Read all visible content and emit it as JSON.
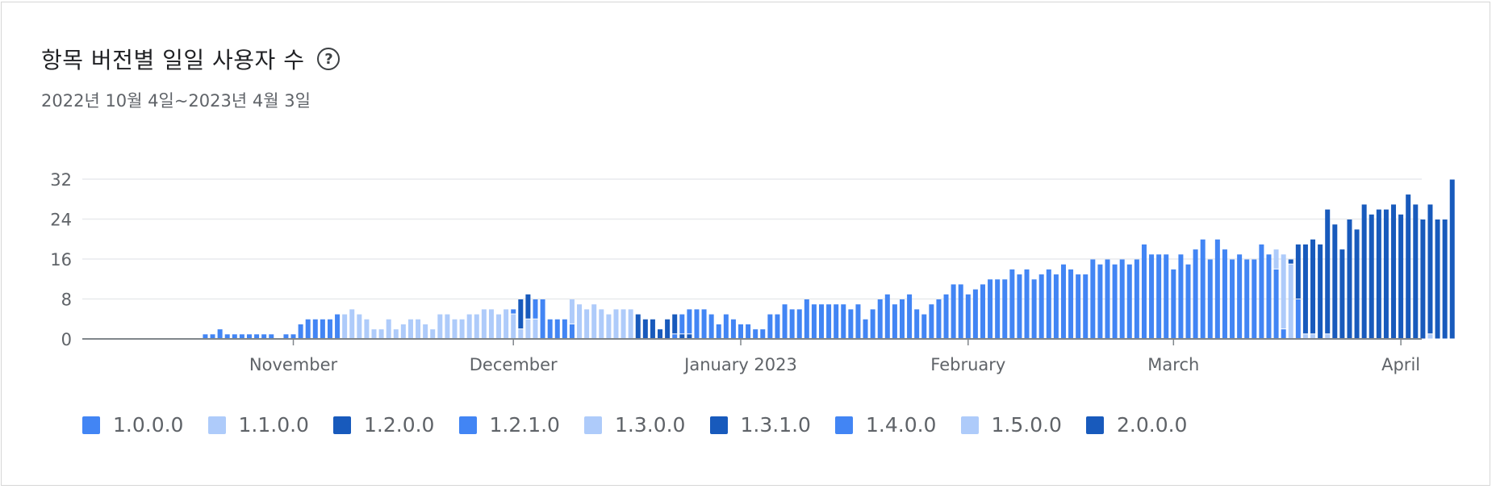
{
  "header": {
    "title": "항목 버전별 일일 사용자 수",
    "subtitle": "2022년 10월 4일~2023년 4월 3일"
  },
  "colors": {
    "mid": "#4285f4",
    "light": "#aecbfa",
    "dark": "#185abc"
  },
  "chart_data": {
    "type": "bar",
    "stacked": true,
    "ylim": [
      0,
      32
    ],
    "yticks": [
      "0",
      "8",
      "16",
      "24",
      "32"
    ],
    "xticks": [
      {
        "label": "November",
        "day": 28
      },
      {
        "label": "December",
        "day": 58
      },
      {
        "label": "January 2023",
        "day": 89
      },
      {
        "label": "February",
        "day": 120
      },
      {
        "label": "March",
        "day": 148
      },
      {
        "label": "April",
        "day": 179
      }
    ],
    "grid": true,
    "legend_position": "bottom",
    "series": [
      {
        "name": "1.0.0.0",
        "color": "#4285f4"
      },
      {
        "name": "1.1.0.0",
        "color": "#aecbfa"
      },
      {
        "name": "1.2.0.0",
        "color": "#185abc"
      },
      {
        "name": "1.2.1.0",
        "color": "#4285f4"
      },
      {
        "name": "1.3.0.0",
        "color": "#aecbfa"
      },
      {
        "name": "1.3.1.0",
        "color": "#185abc"
      },
      {
        "name": "1.4.0.0",
        "color": "#4285f4"
      },
      {
        "name": "1.5.0.0",
        "color": "#aecbfa"
      },
      {
        "name": "2.0.0.0",
        "color": "#185abc"
      }
    ],
    "days": [
      [],
      [],
      [],
      [],
      [],
      [],
      [],
      [],
      [],
      [],
      [],
      [],
      [],
      [],
      [],
      [],
      [
        [
          0,
          1
        ]
      ],
      [
        [
          0,
          1
        ]
      ],
      [
        [
          0,
          2
        ]
      ],
      [
        [
          0,
          1
        ]
      ],
      [
        [
          0,
          1
        ]
      ],
      [
        [
          0,
          1
        ]
      ],
      [
        [
          0,
          1
        ]
      ],
      [
        [
          0,
          1
        ]
      ],
      [
        [
          0,
          1
        ]
      ],
      [
        [
          0,
          1
        ]
      ],
      [],
      [
        [
          0,
          1
        ]
      ],
      [
        [
          0,
          1
        ]
      ],
      [
        [
          0,
          3
        ]
      ],
      [
        [
          0,
          4
        ]
      ],
      [
        [
          0,
          4
        ]
      ],
      [
        [
          0,
          4
        ]
      ],
      [
        [
          0,
          4
        ]
      ],
      [
        [
          0,
          5
        ]
      ],
      [
        [
          1,
          5
        ]
      ],
      [
        [
          1,
          6
        ]
      ],
      [
        [
          1,
          5
        ]
      ],
      [
        [
          1,
          4
        ]
      ],
      [
        [
          1,
          2
        ]
      ],
      [
        [
          1,
          2
        ]
      ],
      [
        [
          1,
          4
        ]
      ],
      [
        [
          1,
          2
        ]
      ],
      [
        [
          1,
          3
        ]
      ],
      [
        [
          1,
          4
        ]
      ],
      [
        [
          1,
          4
        ]
      ],
      [
        [
          1,
          3
        ]
      ],
      [
        [
          1,
          2
        ]
      ],
      [
        [
          1,
          5
        ]
      ],
      [
        [
          1,
          5
        ]
      ],
      [
        [
          1,
          4
        ]
      ],
      [
        [
          1,
          4
        ]
      ],
      [
        [
          1,
          5
        ]
      ],
      [
        [
          1,
          5
        ]
      ],
      [
        [
          1,
          6
        ]
      ],
      [
        [
          1,
          6
        ]
      ],
      [
        [
          1,
          5
        ]
      ],
      [
        [
          1,
          6
        ]
      ],
      [
        [
          1,
          5
        ],
        [
          0,
          1
        ]
      ],
      [
        [
          1,
          2
        ],
        [
          2,
          6
        ]
      ],
      [
        [
          1,
          4
        ],
        [
          2,
          5
        ]
      ],
      [
        [
          1,
          4
        ],
        [
          3,
          4
        ]
      ],
      [
        [
          3,
          8
        ]
      ],
      [
        [
          3,
          4
        ]
      ],
      [
        [
          3,
          4
        ]
      ],
      [
        [
          3,
          4
        ]
      ],
      [
        [
          3,
          3
        ],
        [
          4,
          5
        ]
      ],
      [
        [
          4,
          7
        ]
      ],
      [
        [
          4,
          6
        ]
      ],
      [
        [
          4,
          7
        ]
      ],
      [
        [
          4,
          6
        ]
      ],
      [
        [
          4,
          5
        ]
      ],
      [
        [
          4,
          6
        ]
      ],
      [
        [
          4,
          6
        ]
      ],
      [
        [
          4,
          6
        ]
      ],
      [
        [
          5,
          5
        ]
      ],
      [
        [
          5,
          4
        ]
      ],
      [
        [
          5,
          4
        ]
      ],
      [
        [
          5,
          2
        ]
      ],
      [
        [
          5,
          4
        ]
      ],
      [
        [
          6,
          1
        ],
        [
          5,
          4
        ]
      ],
      [
        [
          5,
          1
        ],
        [
          6,
          4
        ]
      ],
      [
        [
          5,
          1
        ],
        [
          6,
          5
        ]
      ],
      [
        [
          6,
          6
        ]
      ],
      [
        [
          6,
          6
        ]
      ],
      [
        [
          6,
          5
        ]
      ],
      [
        [
          6,
          3
        ]
      ],
      [
        [
          6,
          5
        ]
      ],
      [
        [
          6,
          4
        ]
      ],
      [
        [
          6,
          3
        ]
      ],
      [
        [
          6,
          3
        ]
      ],
      [
        [
          6,
          2
        ]
      ],
      [
        [
          6,
          2
        ]
      ],
      [
        [
          6,
          5
        ]
      ],
      [
        [
          6,
          5
        ]
      ],
      [
        [
          6,
          7
        ]
      ],
      [
        [
          6,
          6
        ]
      ],
      [
        [
          6,
          6
        ]
      ],
      [
        [
          6,
          8
        ]
      ],
      [
        [
          6,
          7
        ]
      ],
      [
        [
          6,
          7
        ]
      ],
      [
        [
          6,
          7
        ]
      ],
      [
        [
          6,
          7
        ]
      ],
      [
        [
          6,
          7
        ]
      ],
      [
        [
          6,
          6
        ]
      ],
      [
        [
          6,
          7
        ]
      ],
      [
        [
          6,
          4
        ]
      ],
      [
        [
          6,
          6
        ]
      ],
      [
        [
          6,
          8
        ]
      ],
      [
        [
          6,
          9
        ]
      ],
      [
        [
          6,
          7
        ]
      ],
      [
        [
          6,
          8
        ]
      ],
      [
        [
          6,
          9
        ]
      ],
      [
        [
          6,
          6
        ]
      ],
      [
        [
          6,
          5
        ]
      ],
      [
        [
          6,
          7
        ]
      ],
      [
        [
          6,
          8
        ]
      ],
      [
        [
          6,
          9
        ]
      ],
      [
        [
          6,
          11
        ]
      ],
      [
        [
          6,
          11
        ]
      ],
      [
        [
          6,
          9
        ]
      ],
      [
        [
          6,
          10
        ]
      ],
      [
        [
          6,
          11
        ]
      ],
      [
        [
          6,
          12
        ]
      ],
      [
        [
          6,
          12
        ]
      ],
      [
        [
          6,
          12
        ]
      ],
      [
        [
          6,
          14
        ]
      ],
      [
        [
          6,
          13
        ]
      ],
      [
        [
          6,
          14
        ]
      ],
      [
        [
          6,
          12
        ]
      ],
      [
        [
          6,
          13
        ]
      ],
      [
        [
          6,
          14
        ]
      ],
      [
        [
          6,
          13
        ]
      ],
      [
        [
          6,
          15
        ]
      ],
      [
        [
          6,
          14
        ]
      ],
      [
        [
          6,
          13
        ]
      ],
      [
        [
          6,
          13
        ]
      ],
      [
        [
          6,
          16
        ]
      ],
      [
        [
          6,
          15
        ]
      ],
      [
        [
          6,
          16
        ]
      ],
      [
        [
          6,
          15
        ]
      ],
      [
        [
          6,
          16
        ]
      ],
      [
        [
          6,
          15
        ]
      ],
      [
        [
          6,
          16
        ]
      ],
      [
        [
          6,
          19
        ]
      ],
      [
        [
          6,
          17
        ]
      ],
      [
        [
          6,
          17
        ]
      ],
      [
        [
          6,
          17
        ]
      ],
      [
        [
          6,
          14
        ]
      ],
      [
        [
          6,
          17
        ]
      ],
      [
        [
          6,
          15
        ]
      ],
      [
        [
          6,
          18
        ]
      ],
      [
        [
          6,
          20
        ]
      ],
      [
        [
          6,
          16
        ]
      ],
      [
        [
          6,
          20
        ]
      ],
      [
        [
          6,
          18
        ]
      ],
      [
        [
          6,
          16
        ]
      ],
      [
        [
          6,
          17
        ]
      ],
      [
        [
          6,
          16
        ]
      ],
      [
        [
          6,
          16
        ]
      ],
      [
        [
          6,
          19
        ]
      ],
      [
        [
          6,
          17
        ]
      ],
      [
        [
          6,
          14
        ],
        [
          7,
          4
        ]
      ],
      [
        [
          6,
          2
        ],
        [
          7,
          15
        ]
      ],
      [
        [
          7,
          15
        ],
        [
          8,
          1
        ]
      ],
      [
        [
          6,
          8
        ],
        [
          8,
          11
        ]
      ],
      [
        [
          7,
          1
        ],
        [
          8,
          18
        ]
      ],
      [
        [
          7,
          1
        ],
        [
          8,
          19
        ]
      ],
      [
        [
          8,
          19
        ]
      ],
      [
        [
          7,
          1
        ],
        [
          8,
          25
        ]
      ],
      [
        [
          8,
          23
        ]
      ],
      [
        [
          8,
          18
        ]
      ],
      [
        [
          8,
          24
        ]
      ],
      [
        [
          8,
          22
        ]
      ],
      [
        [
          8,
          27
        ]
      ],
      [
        [
          8,
          25
        ]
      ],
      [
        [
          8,
          26
        ]
      ],
      [
        [
          8,
          26
        ]
      ],
      [
        [
          8,
          27
        ]
      ],
      [
        [
          8,
          25
        ]
      ],
      [
        [
          8,
          29
        ]
      ],
      [
        [
          8,
          27
        ]
      ],
      [
        [
          8,
          24
        ]
      ],
      [
        [
          7,
          1
        ],
        [
          8,
          26
        ]
      ],
      [
        [
          8,
          24
        ]
      ],
      [
        [
          8,
          24
        ]
      ],
      [
        [
          8,
          32
        ]
      ]
    ]
  }
}
